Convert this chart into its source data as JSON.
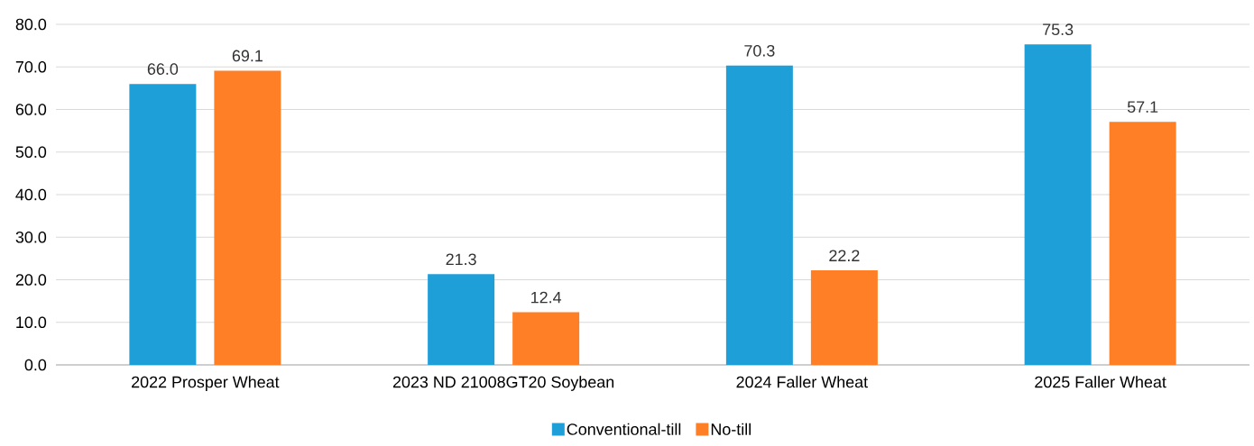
{
  "chart_data": {
    "type": "bar",
    "categories": [
      "2022 Prosper Wheat",
      "2023 ND 21008GT20 Soybean",
      "2024 Faller Wheat",
      "2025 Faller Wheat"
    ],
    "series": [
      {
        "name": "Conventional-till",
        "color": "#1f9fd8",
        "values": [
          66.0,
          21.3,
          70.3,
          75.3
        ],
        "value_labels": [
          "66.0",
          "21.3",
          "70.3",
          "75.3"
        ]
      },
      {
        "name": "No-till",
        "color": "#ff7f27",
        "values": [
          69.1,
          12.4,
          22.2,
          57.1
        ],
        "value_labels": [
          "69.1",
          "12.4",
          "22.2",
          "57.1"
        ]
      }
    ],
    "ylim": [
      0,
      80
    ],
    "yticks": [
      {
        "value": 0,
        "label": "0.0"
      },
      {
        "value": 10,
        "label": "10.0"
      },
      {
        "value": 20,
        "label": "20.0"
      },
      {
        "value": 30,
        "label": "30.0"
      },
      {
        "value": 40,
        "label": "40.0"
      },
      {
        "value": 50,
        "label": "50.0"
      },
      {
        "value": 60,
        "label": "60.0"
      },
      {
        "value": 70,
        "label": "70.0"
      },
      {
        "value": 80,
        "label": "80.0"
      }
    ],
    "grid": "y",
    "legend": "bottom"
  }
}
